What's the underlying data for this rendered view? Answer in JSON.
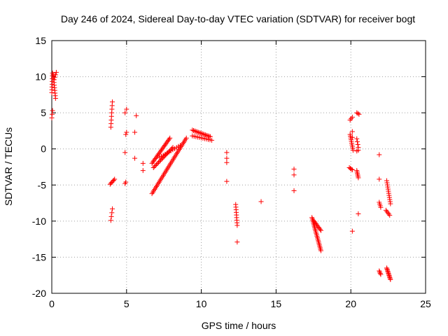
{
  "chart_data": {
    "type": "scatter",
    "title": "Day 246 of 2024, Sidereal Day-to-day VTEC variation (SDTVAR) for receiver bogt",
    "xlabel": "GPS time / hours",
    "ylabel": "SDTVAR / TECUs",
    "xlim": [
      0,
      25
    ],
    "ylim": [
      -20,
      15
    ],
    "xticks": [
      0,
      5,
      10,
      15,
      20,
      25
    ],
    "yticks": [
      -20,
      -15,
      -10,
      -5,
      0,
      5,
      10,
      15
    ],
    "grid": true,
    "marker": "plus",
    "color": "#ff0000",
    "segments": [
      {
        "x0": 0.0,
        "y0": 7.8,
        "x1": 0.05,
        "y1": 10.5,
        "n": 8
      },
      {
        "x0": 0.1,
        "y0": 10.3,
        "x1": 0.25,
        "y1": 7.0,
        "n": 10
      },
      {
        "x0": 0.0,
        "y0": 4.3,
        "x1": 0.05,
        "y1": 5.3,
        "n": 3
      },
      {
        "x0": 0.15,
        "y0": 9.6,
        "x1": 0.3,
        "y1": 10.6,
        "n": 4
      },
      {
        "x0": 3.95,
        "y0": 3.0,
        "x1": 4.05,
        "y1": 6.5,
        "n": 8
      },
      {
        "x0": 3.9,
        "y0": -4.9,
        "x1": 4.2,
        "y1": -4.2,
        "n": 6
      },
      {
        "x0": 3.95,
        "y0": -9.9,
        "x1": 4.05,
        "y1": -8.3,
        "n": 4
      },
      {
        "x0": 4.9,
        "y0": 5.0,
        "x1": 5.0,
        "y1": 5.5,
        "n": 2
      },
      {
        "x0": 4.95,
        "y0": 2.0,
        "x1": 5.0,
        "y1": 2.3,
        "n": 2
      },
      {
        "x0": 5.65,
        "y0": 4.6,
        "x1": 5.65,
        "y1": 4.6,
        "n": 1
      },
      {
        "x0": 5.55,
        "y0": 2.3,
        "x1": 5.55,
        "y1": 2.3,
        "n": 1
      },
      {
        "x0": 4.9,
        "y0": -0.5,
        "x1": 4.9,
        "y1": -0.5,
        "n": 1
      },
      {
        "x0": 5.55,
        "y0": -1.3,
        "x1": 5.55,
        "y1": -1.3,
        "n": 1
      },
      {
        "x0": 4.9,
        "y0": -4.8,
        "x1": 4.95,
        "y1": -4.6,
        "n": 2
      },
      {
        "x0": 6.1,
        "y0": -2.0,
        "x1": 6.1,
        "y1": -2.0,
        "n": 1
      },
      {
        "x0": 6.1,
        "y0": -3.0,
        "x1": 6.1,
        "y1": -3.0,
        "n": 1
      },
      {
        "x0": 6.7,
        "y0": -6.2,
        "x1": 9.0,
        "y1": 1.5,
        "n": 40
      },
      {
        "x0": 6.7,
        "y0": -2.0,
        "x1": 7.9,
        "y1": 1.5,
        "n": 22
      },
      {
        "x0": 6.8,
        "y0": -2.6,
        "x1": 8.1,
        "y1": 0.2,
        "n": 20
      },
      {
        "x0": 7.2,
        "y0": -1.2,
        "x1": 8.6,
        "y1": 0.5,
        "n": 12
      },
      {
        "x0": 9.4,
        "y0": 2.6,
        "x1": 10.6,
        "y1": 1.7,
        "n": 16
      },
      {
        "x0": 9.4,
        "y0": 1.8,
        "x1": 10.7,
        "y1": 1.2,
        "n": 12
      },
      {
        "x0": 11.7,
        "y0": -0.5,
        "x1": 11.7,
        "y1": -0.5,
        "n": 1
      },
      {
        "x0": 11.7,
        "y0": -1.3,
        "x1": 11.7,
        "y1": -1.9,
        "n": 2
      },
      {
        "x0": 11.7,
        "y0": -4.5,
        "x1": 11.7,
        "y1": -4.5,
        "n": 1
      },
      {
        "x0": 12.3,
        "y0": -7.7,
        "x1": 12.4,
        "y1": -10.6,
        "n": 9
      },
      {
        "x0": 12.4,
        "y0": -12.9,
        "x1": 12.4,
        "y1": -12.9,
        "n": 1
      },
      {
        "x0": 14.0,
        "y0": -7.3,
        "x1": 14.0,
        "y1": -7.3,
        "n": 1
      },
      {
        "x0": 16.2,
        "y0": -2.8,
        "x1": 16.2,
        "y1": -3.6,
        "n": 2
      },
      {
        "x0": 16.2,
        "y0": -5.8,
        "x1": 16.2,
        "y1": -5.8,
        "n": 1
      },
      {
        "x0": 17.4,
        "y0": -9.5,
        "x1": 18.0,
        "y1": -14.1,
        "n": 24
      },
      {
        "x0": 17.5,
        "y0": -9.9,
        "x1": 18.0,
        "y1": -11.3,
        "n": 10
      },
      {
        "x0": 19.95,
        "y0": 4.0,
        "x1": 20.1,
        "y1": 4.4,
        "n": 3
      },
      {
        "x0": 19.95,
        "y0": 2.0,
        "x1": 20.15,
        "y1": -0.2,
        "n": 10
      },
      {
        "x0": 20.1,
        "y0": 2.4,
        "x1": 20.1,
        "y1": 1.6,
        "n": 2
      },
      {
        "x0": 20.4,
        "y0": 5.0,
        "x1": 20.55,
        "y1": 4.8,
        "n": 3
      },
      {
        "x0": 20.4,
        "y0": 1.4,
        "x1": 20.5,
        "y1": 0.2,
        "n": 4
      },
      {
        "x0": 20.4,
        "y0": -0.3,
        "x1": 20.5,
        "y1": -0.2,
        "n": 2
      },
      {
        "x0": 19.9,
        "y0": -2.6,
        "x1": 20.1,
        "y1": -2.9,
        "n": 4
      },
      {
        "x0": 20.4,
        "y0": -3.0,
        "x1": 20.5,
        "y1": -4.0,
        "n": 6
      },
      {
        "x0": 20.5,
        "y0": -9.0,
        "x1": 20.5,
        "y1": -9.0,
        "n": 1
      },
      {
        "x0": 20.1,
        "y0": -11.4,
        "x1": 20.1,
        "y1": -11.4,
        "n": 1
      },
      {
        "x0": 21.9,
        "y0": -0.8,
        "x1": 21.9,
        "y1": -0.8,
        "n": 1
      },
      {
        "x0": 21.9,
        "y0": -4.2,
        "x1": 21.9,
        "y1": -4.2,
        "n": 1
      },
      {
        "x0": 21.9,
        "y0": -7.4,
        "x1": 22.0,
        "y1": -8.1,
        "n": 4
      },
      {
        "x0": 22.4,
        "y0": -4.4,
        "x1": 22.65,
        "y1": -7.6,
        "n": 12
      },
      {
        "x0": 22.35,
        "y0": -8.5,
        "x1": 22.6,
        "y1": -9.2,
        "n": 5
      },
      {
        "x0": 21.9,
        "y0": -16.9,
        "x1": 22.0,
        "y1": -17.4,
        "n": 4
      },
      {
        "x0": 22.4,
        "y0": -16.5,
        "x1": 22.65,
        "y1": -18.1,
        "n": 12
      }
    ]
  }
}
